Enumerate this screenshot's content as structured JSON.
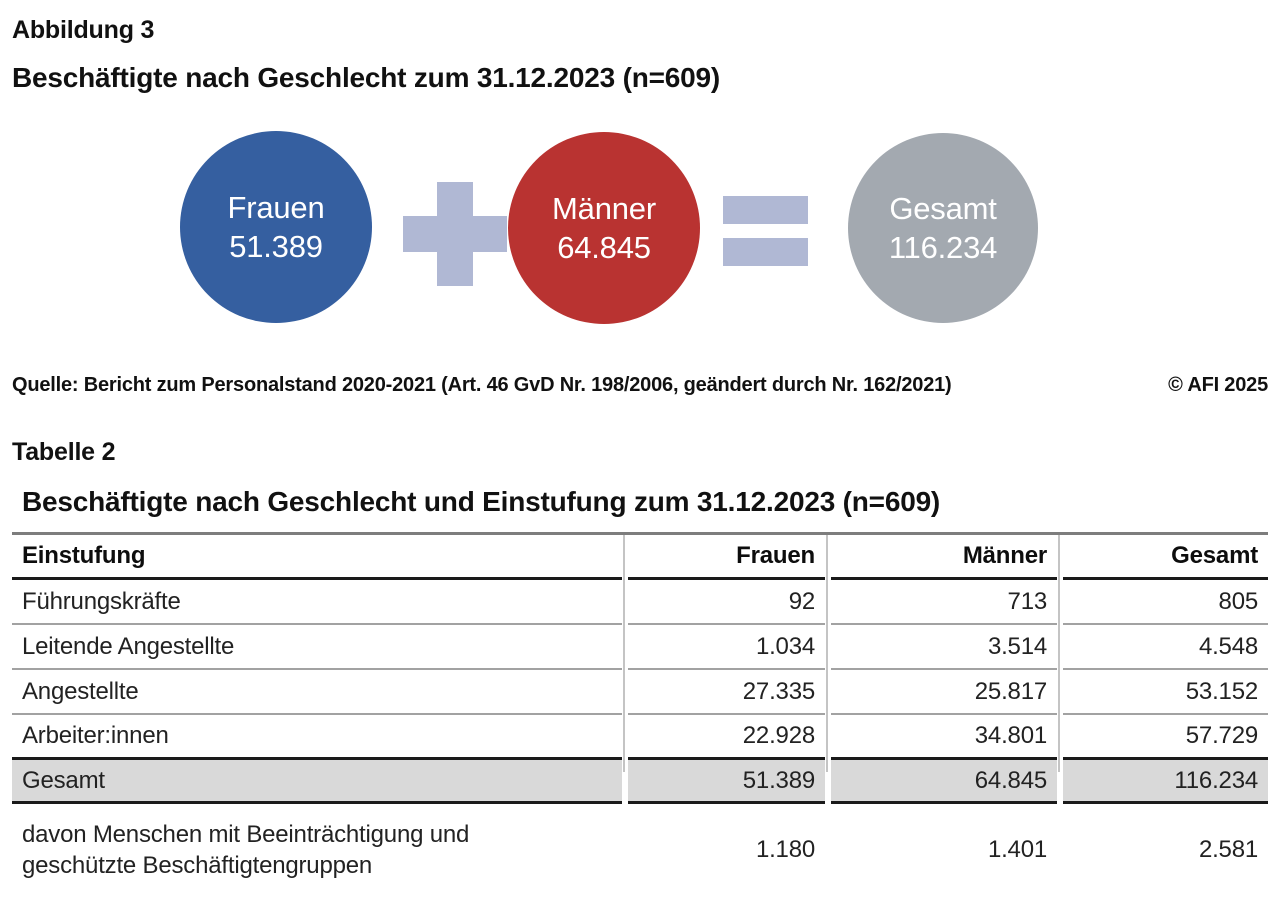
{
  "figure": {
    "label": "Abbildung 3",
    "title": "Beschäftigte nach Geschlecht zum 31.12.2023 (n=609)",
    "circles": [
      {
        "label": "Frauen",
        "value": "51.389",
        "color": "#355fa0"
      },
      {
        "label": "Männer",
        "value": "64.845",
        "color": "#b93331"
      },
      {
        "label": "Gesamt",
        "value": "116.234",
        "color": "#a3a9b0"
      }
    ],
    "operator_color": "#b0b8d4"
  },
  "source": {
    "text": "Quelle: Bericht zum Personalstand 2020-2021 (Art. 46 GvD Nr. 198/2006, geändert durch Nr. 162/2021)",
    "copyright": "© AFI 2025"
  },
  "table": {
    "label": "Tabelle 2",
    "title": "Beschäftigte nach Geschlecht und Einstufung zum 31.12.2023 (n=609)",
    "columns": [
      "Einstufung",
      "Frauen",
      "Männer",
      "Gesamt"
    ],
    "rows": [
      {
        "label": "Führungskräfte",
        "frauen": "92",
        "maenner": "713",
        "gesamt": "805"
      },
      {
        "label": "Leitende Angestellte",
        "frauen": "1.034",
        "maenner": "3.514",
        "gesamt": "4.548"
      },
      {
        "label": "Angestellte",
        "frauen": "27.335",
        "maenner": "25.817",
        "gesamt": "53.152"
      },
      {
        "label": "Arbeiter:innen",
        "frauen": "22.928",
        "maenner": "34.801",
        "gesamt": "57.729"
      }
    ],
    "total_row": {
      "label": "Gesamt",
      "frauen": "51.389",
      "maenner": "64.845",
      "gesamt": "116.234"
    },
    "note_row": {
      "label": "davon Menschen mit Beeinträchtigung und geschützte Beschäftigtengruppen",
      "frauen": "1.180",
      "maenner": "1.401",
      "gesamt": "2.581"
    }
  },
  "chart_data": [
    {
      "type": "pie",
      "title": "Beschäftigte nach Geschlecht zum 31.12.2023 (n=609)",
      "categories": [
        "Frauen",
        "Männer",
        "Gesamt"
      ],
      "values": [
        51389,
        64845,
        116234
      ],
      "annotations": [
        "Frauen + Männer = Gesamt"
      ]
    },
    {
      "type": "table",
      "title": "Beschäftigte nach Geschlecht und Einstufung zum 31.12.2023 (n=609)",
      "columns": [
        "Einstufung",
        "Frauen",
        "Männer",
        "Gesamt"
      ],
      "rows": [
        [
          "Führungskräfte",
          92,
          713,
          805
        ],
        [
          "Leitende Angestellte",
          1034,
          3514,
          4548
        ],
        [
          "Angestellte",
          27335,
          25817,
          53152
        ],
        [
          "Arbeiter:innen",
          22928,
          34801,
          57729
        ],
        [
          "Gesamt",
          51389,
          64845,
          116234
        ],
        [
          "davon Menschen mit Beeinträchtigung und geschützte Beschäftigtengruppen",
          1180,
          1401,
          2581
        ]
      ]
    }
  ]
}
